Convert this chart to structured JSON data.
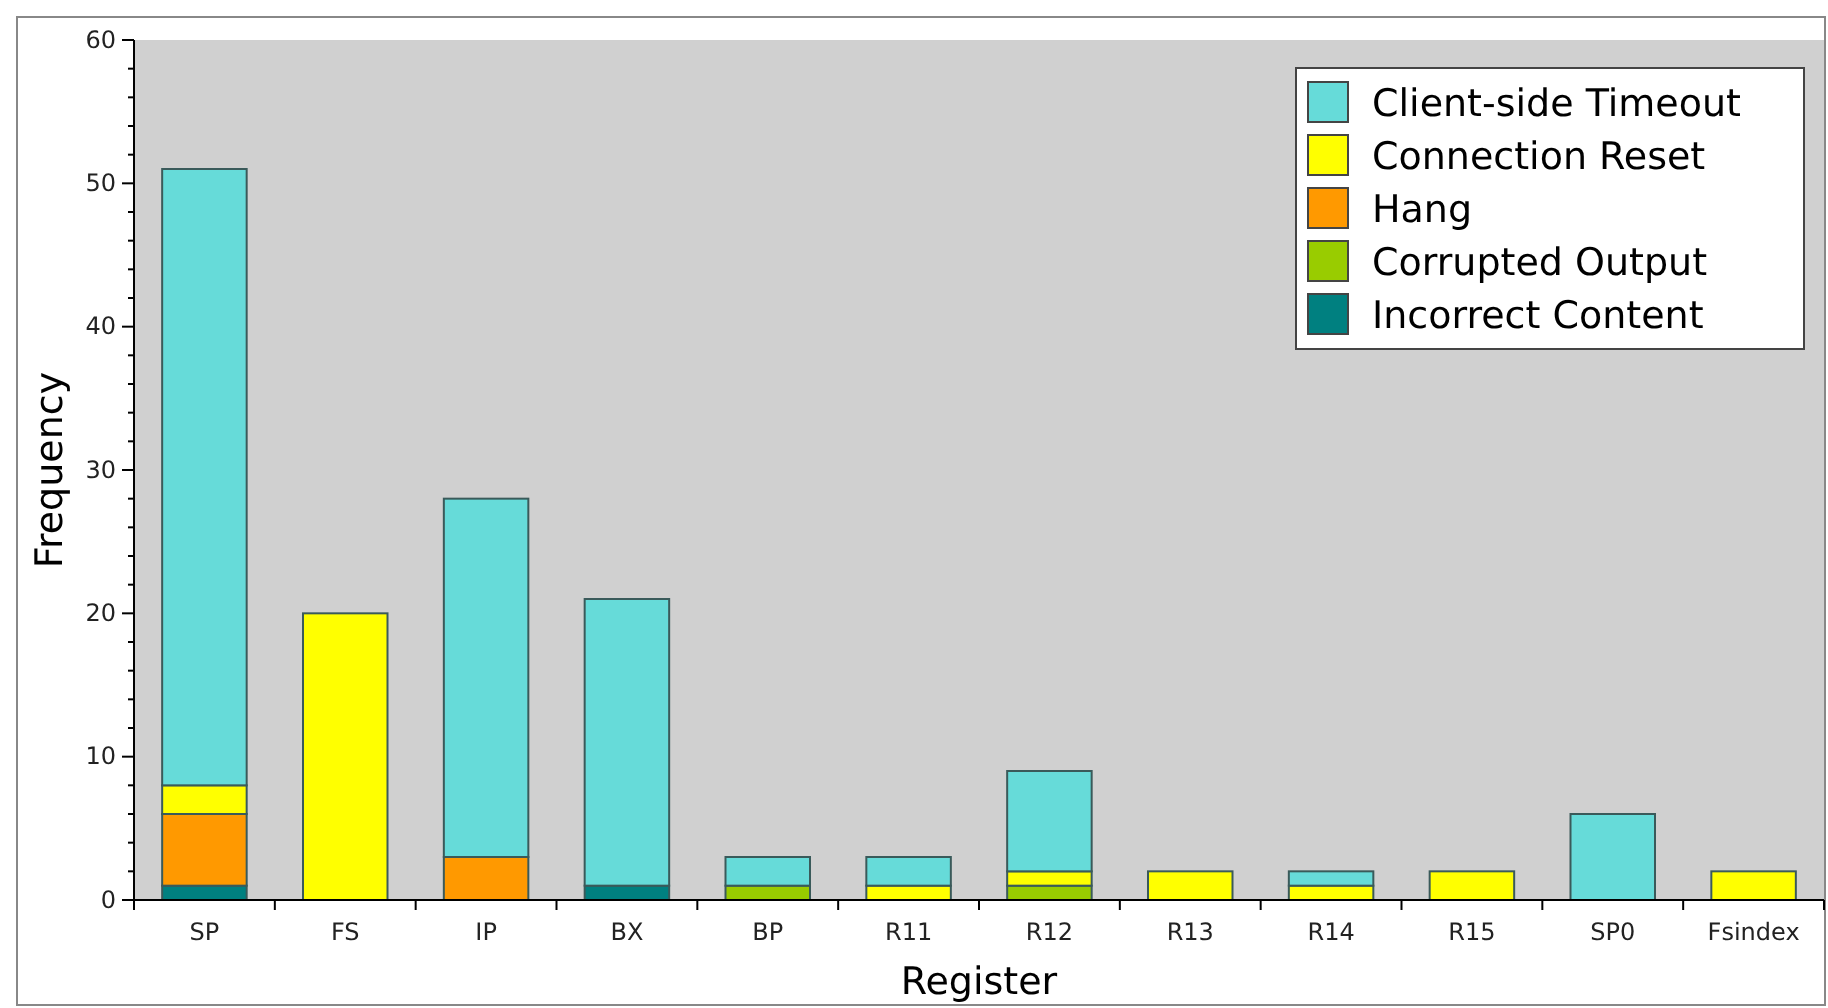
{
  "chart_data": {
    "type": "bar",
    "stacked": true,
    "xlabel": "Register",
    "ylabel": "Frequency",
    "categories": [
      "SP",
      "FS",
      "IP",
      "BX",
      "BP",
      "R11",
      "R12",
      "R13",
      "R14",
      "R15",
      "SP0",
      "Fsindex"
    ],
    "series": [
      {
        "name": "Incorrect Content",
        "color": "#008080",
        "values": [
          1,
          0,
          0,
          1,
          0,
          0,
          0,
          0,
          0,
          0,
          0,
          0
        ]
      },
      {
        "name": "Corrupted Output",
        "color": "#99cc00",
        "values": [
          0,
          0,
          0,
          0,
          1,
          0,
          1,
          0,
          0,
          0,
          0,
          0
        ]
      },
      {
        "name": "Hang",
        "color": "#ff9900",
        "values": [
          5,
          0,
          3,
          0,
          0,
          0,
          0,
          0,
          0,
          0,
          0,
          0
        ]
      },
      {
        "name": "Connection Reset",
        "color": "#ffff00",
        "values": [
          2,
          20,
          0,
          0,
          0,
          1,
          1,
          2,
          1,
          2,
          0,
          2
        ]
      },
      {
        "name": "Client-side Timeout",
        "color": "#66dbd9",
        "values": [
          43,
          0,
          25,
          20,
          2,
          2,
          7,
          0,
          1,
          0,
          6,
          0
        ]
      }
    ],
    "ylim": [
      0,
      60
    ],
    "yticks": [
      0,
      {
        "value": 2,
        "label": null
      },
      {
        "value": 4,
        "label": null
      },
      {
        "value": 6,
        "label": null
      },
      {
        "value": 8,
        "label": null
      },
      10,
      {
        "value": 12,
        "label": null
      },
      {
        "value": 14,
        "label": null
      },
      {
        "value": 16,
        "label": null
      },
      {
        "value": 18,
        "label": null
      },
      20,
      {
        "value": 22,
        "label": null
      },
      {
        "value": 24,
        "label": null
      },
      {
        "value": 26,
        "label": null
      },
      {
        "value": 28,
        "label": null
      },
      30,
      {
        "value": 32,
        "label": null
      },
      {
        "value": 34,
        "label": null
      },
      {
        "value": 36,
        "label": null
      },
      {
        "value": 38,
        "label": null
      },
      40,
      {
        "value": 42,
        "label": null
      },
      {
        "value": 44,
        "label": null
      },
      {
        "value": 46,
        "label": null
      },
      {
        "value": 48,
        "label": null
      },
      50,
      {
        "value": 52,
        "label": null
      },
      {
        "value": 54,
        "label": null
      },
      {
        "value": 56,
        "label": null
      },
      {
        "value": 58,
        "label": null
      },
      60
    ],
    "grid": false,
    "legend": "top right"
  }
}
